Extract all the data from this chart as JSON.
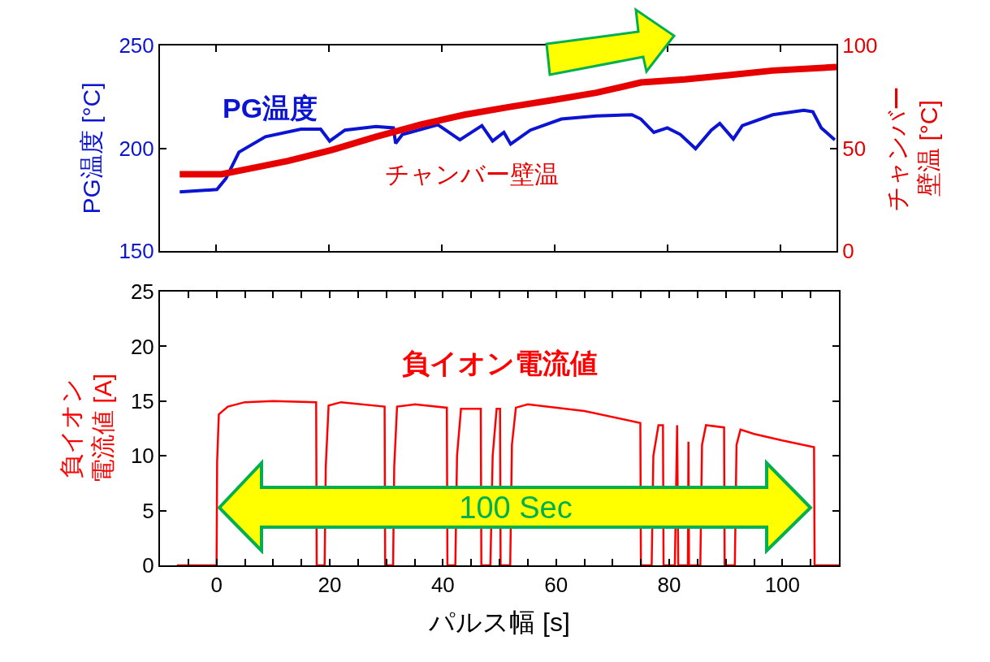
{
  "chart_data": [
    {
      "type": "line",
      "ylabel": "PG温度 [°C]",
      "y2label": "チャンバー壁温 [°C]",
      "tick_labels": "y",
      "grid": false,
      "marker": "none",
      "line_style": "solid",
      "xlim": [
        -10,
        110
      ],
      "xticks": [
        {
          "value": 0,
          "label": null
        },
        {
          "value": 20,
          "label": null
        },
        {
          "value": 40,
          "label": null
        },
        {
          "value": 60,
          "label": null
        },
        {
          "value": 80,
          "label": null
        },
        {
          "value": 100,
          "label": null
        }
      ],
      "ylim": [
        150,
        250
      ],
      "yticks": [
        150,
        200,
        250
      ],
      "y2lim": [
        0,
        100
      ],
      "y2ticks": [
        0,
        50,
        100
      ],
      "series": [
        {
          "name": "PG温度",
          "color": "#0a14d2",
          "x": [
            -6.5,
            0.1,
            1.7,
            4.0,
            8.7,
            15.0,
            18.5,
            20.1,
            22.8,
            28.3,
            31.4,
            31.8,
            33.0,
            39.3,
            43.2,
            47.1,
            49.0,
            51.0,
            52.2,
            55.7,
            61.2,
            67.4,
            73.7,
            75.3,
            77.6,
            80.0,
            82.3,
            85.0,
            87.8,
            89.3,
            91.7,
            93.3,
            98.7,
            104.2,
            105.8,
            107.3,
            109.7
          ],
          "values": [
            178.8,
            179.9,
            185.3,
            198.1,
            205.6,
            209.3,
            209.3,
            203.5,
            208.8,
            210.6,
            209.9,
            202.4,
            206.7,
            211.4,
            204.1,
            211.0,
            203.5,
            207.7,
            202.0,
            208.8,
            214.2,
            215.7,
            216.3,
            214.2,
            207.7,
            209.9,
            206.7,
            199.8,
            208.8,
            212.1,
            204.5,
            211.0,
            216.3,
            218.5,
            217.8,
            209.9,
            204.1
          ]
        },
        {
          "name": "チャンバー壁温",
          "color": "#e60000",
          "axis": "y2",
          "x": [
            -6.5,
            0.9,
            4.8,
            12.7,
            20.5,
            28.3,
            36.1,
            44.0,
            51.8,
            59.6,
            67.4,
            75.3,
            83.1,
            90.9,
            98.7,
            110
          ],
          "values": [
            37.4,
            37.4,
            39.5,
            43.8,
            49.2,
            55.6,
            61.4,
            66.3,
            70.0,
            73.4,
            77.0,
            82.0,
            83.5,
            85.6,
            87.8,
            89.5
          ]
        }
      ]
    },
    {
      "type": "line",
      "xlabel": "パルス幅 [s]",
      "ylabel": "負イオン電流値 [A]",
      "grid": false,
      "marker": "none",
      "line_style": "solid",
      "annotations": [
        "100 Sec"
      ],
      "xlim": [
        -10,
        110
      ],
      "xticks": [
        {
          "value": -5,
          "label": null
        },
        0,
        {
          "value": 5,
          "label": null
        },
        {
          "value": 10,
          "label": null
        },
        {
          "value": 15,
          "label": null
        },
        20,
        {
          "value": 25,
          "label": null
        },
        {
          "value": 30,
          "label": null
        },
        {
          "value": 35,
          "label": null
        },
        40,
        {
          "value": 45,
          "label": null
        },
        {
          "value": 50,
          "label": null
        },
        {
          "value": 55,
          "label": null
        },
        60,
        {
          "value": 65,
          "label": null
        },
        {
          "value": 70,
          "label": null
        },
        {
          "value": 75,
          "label": null
        },
        80,
        {
          "value": 85,
          "label": null
        },
        {
          "value": 90,
          "label": null
        },
        {
          "value": 95,
          "label": null
        },
        100,
        {
          "value": 105,
          "label": null
        }
      ],
      "ylim": [
        0,
        25
      ],
      "yticks": [
        0,
        5,
        10,
        15,
        20,
        25
      ],
      "series": [
        {
          "name": "負イオン電流値",
          "color": "#ff0000",
          "x": [
            -7,
            0,
            0.1,
            0.4,
            2,
            5,
            10,
            17.6,
            17.7,
            19.1,
            19.3,
            19.8,
            22,
            29.7,
            29.8,
            31.2,
            31.4,
            31.9,
            35,
            40.7,
            40.8,
            42.2,
            42.5,
            43.2,
            46.7,
            46.8,
            48.4,
            48.8,
            49.5,
            50.1,
            50.2,
            51.9,
            52.2,
            52.9,
            55,
            65,
            74.9,
            75.0,
            76.9,
            77.2,
            78.1,
            78.9,
            79.0,
            81.0,
            81.4,
            81.6,
            83.3,
            83.4,
            83.5,
            85.5,
            85.8,
            86.5,
            89.7,
            89.8,
            91.6,
            91.9,
            92.6,
            95,
            100,
            105.6,
            105.7,
            110
          ],
          "values": [
            0,
            0,
            9.5,
            13.8,
            14.5,
            14.9,
            15.0,
            14.9,
            0,
            0,
            9,
            14.6,
            14.9,
            14.5,
            0,
            0,
            9,
            14.5,
            14.7,
            14.4,
            0,
            0,
            10,
            14.3,
            14.3,
            0,
            0,
            10,
            14.3,
            14.3,
            0,
            0,
            11,
            14.4,
            14.7,
            14.1,
            13.0,
            0,
            0,
            10,
            12.8,
            12.8,
            0,
            0,
            12.8,
            0,
            0,
            11.3,
            0,
            0,
            11,
            12.8,
            12.6,
            0,
            0,
            11,
            12.4,
            12.0,
            11.4,
            10.8,
            0,
            0
          ]
        }
      ]
    }
  ]
}
